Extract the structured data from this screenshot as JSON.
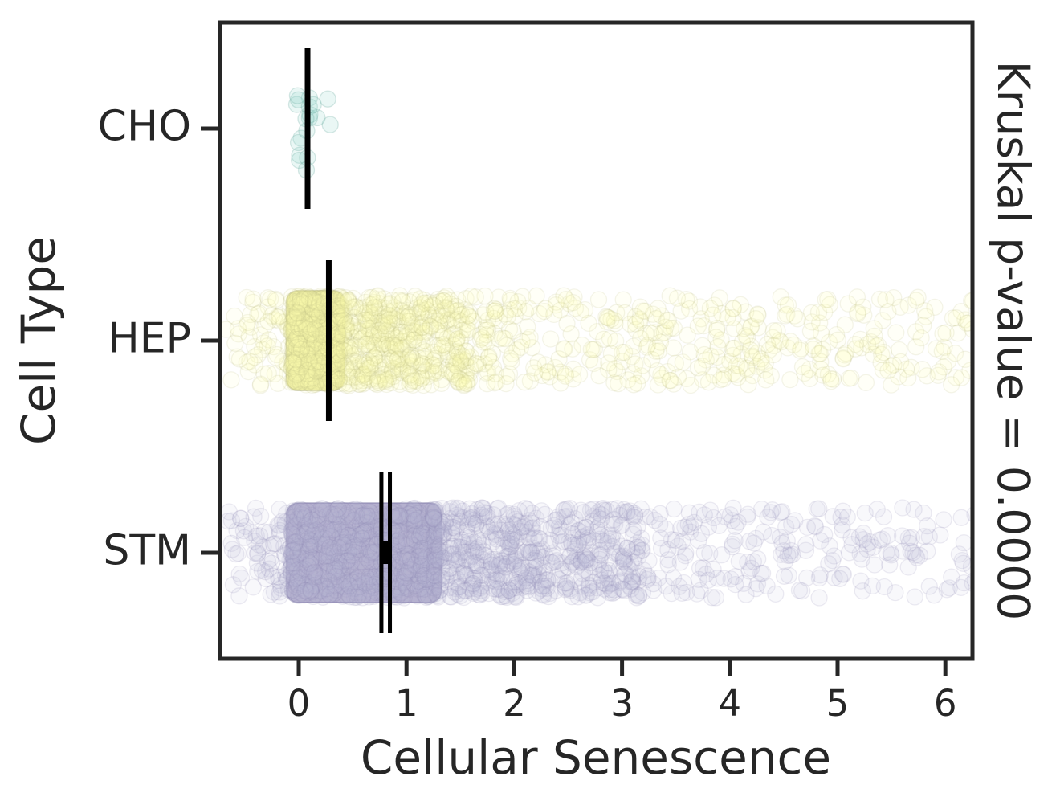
{
  "chart_data": {
    "type": "scatter",
    "subtype": "horizontal-strip-plot-with-mean-ci",
    "title": "",
    "xlabel": "Cellular Senescence",
    "ylabel": "Cell Type",
    "right_annotation": "Kruskal p-value = 0.0000",
    "kruskal_p_value": "0.0000",
    "xlim": [
      -0.73,
      6.25
    ],
    "xticks": [
      0,
      1,
      2,
      3,
      4,
      5,
      6
    ],
    "categories": [
      "CHO",
      "HEP",
      "STM"
    ],
    "grid": false,
    "legend": null,
    "style": {
      "background": "#ffffff",
      "axis_color": "#262626",
      "text_color": "#262626",
      "stat_marker_color": "#000000",
      "point_radius": 10,
      "fill_opacity": 0.1,
      "stroke_opacity": 0.16,
      "cho_fill_opacity": 0.18,
      "cho_stroke_opacity": 0.28
    },
    "series": [
      {
        "name": "CHO",
        "color": "#8dd3c7",
        "edge_color": "#6faca0",
        "n_points": 19,
        "x_min": -0.05,
        "x_max": 0.34,
        "center_estimate": 0.08,
        "ci": [
          0.08,
          0.08
        ],
        "stat": {
          "type": "line",
          "x": 0.082
        },
        "components": [
          {
            "n": 13,
            "lo": -0.05,
            "hi": 0.1,
            "p": 1
          },
          {
            "n": 6,
            "lo": 0.06,
            "hi": 0.34,
            "p": 1.6
          }
        ]
      },
      {
        "name": "HEP",
        "color": "#ffffb3",
        "edge_color": "#bcbc82",
        "n_points": 1510,
        "x_min": -0.68,
        "x_max": 6.25,
        "center_estimate": 0.28,
        "ci": [
          0.27,
          0.29
        ],
        "dense_block": {
          "lo": -0.07,
          "hi": 0.38,
          "fill": "#e9e9a1",
          "edge": "#a8a86e"
        },
        "stat": {
          "type": "line",
          "x": 0.279
        },
        "components": [
          {
            "n": 70,
            "lo": -0.68,
            "hi": -0.05,
            "p": 2,
            "neg": true
          },
          {
            "n": 500,
            "lo": -0.07,
            "hi": 0.38,
            "p": 1
          },
          {
            "n": 420,
            "lo": 0.36,
            "hi": 1.6,
            "p": 1.4
          },
          {
            "n": 520,
            "lo": 0.6,
            "hi": 6.28,
            "p": 1.25
          }
        ]
      },
      {
        "name": "STM",
        "color": "#bebada",
        "edge_color": "#8d87b3",
        "n_points": 1570,
        "x_min": -0.66,
        "x_max": 6.25,
        "center_estimate": 0.81,
        "ci": [
          0.77,
          0.85
        ],
        "dense_block": {
          "lo": -0.07,
          "hi": 1.28,
          "fill": "#b5b0cf",
          "edge": "#7f7aa6"
        },
        "stat": {
          "type": "ci",
          "lo": 0.767,
          "hi": 0.846,
          "mid": 0.808
        },
        "components": [
          {
            "n": 90,
            "lo": -0.66,
            "hi": -0.05,
            "p": 2,
            "neg": true
          },
          {
            "n": 650,
            "lo": -0.07,
            "hi": 1.28,
            "p": 1
          },
          {
            "n": 450,
            "lo": 1.25,
            "hi": 3.2,
            "p": 1.5
          },
          {
            "n": 380,
            "lo": 1.6,
            "hi": 6.28,
            "p": 1.3
          }
        ]
      }
    ]
  }
}
